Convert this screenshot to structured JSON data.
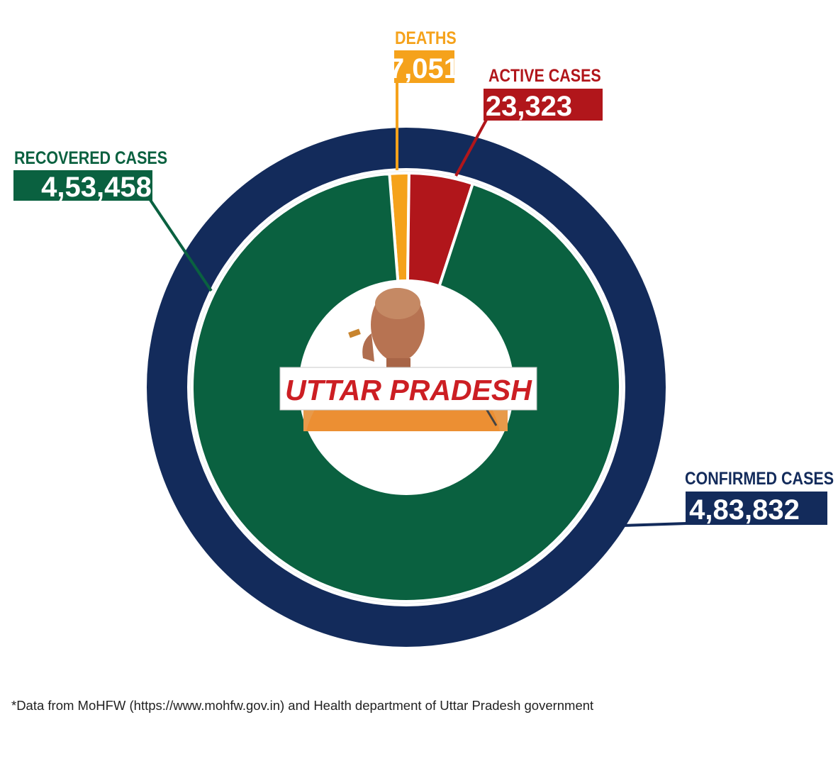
{
  "chart_data": {
    "type": "pie",
    "style": "donut with outer ring",
    "center_title": "UTTAR PRADESH",
    "center_image": "portrait photograph of the Uttar Pradesh Chief Minister",
    "total": {
      "label": "CONFIRMED CASES",
      "value_text": "4,83,832",
      "value": 483832,
      "color": "#132b5b"
    },
    "slices": [
      {
        "label": "DEATHS",
        "value_text": "7,051",
        "value": 7051,
        "color": "#f5a21b"
      },
      {
        "label": "ACTIVE CASES",
        "value_text": "23,323",
        "value": 23323,
        "color": "#b1161b"
      },
      {
        "label": "RECOVERED CASES",
        "value_text": "4,53,458",
        "value": 453458,
        "color": "#0a6140"
      }
    ]
  },
  "footnote": "*Data from MoHFW (https://www.mohfw.gov.in) and Health department of Uttar Pradesh government"
}
